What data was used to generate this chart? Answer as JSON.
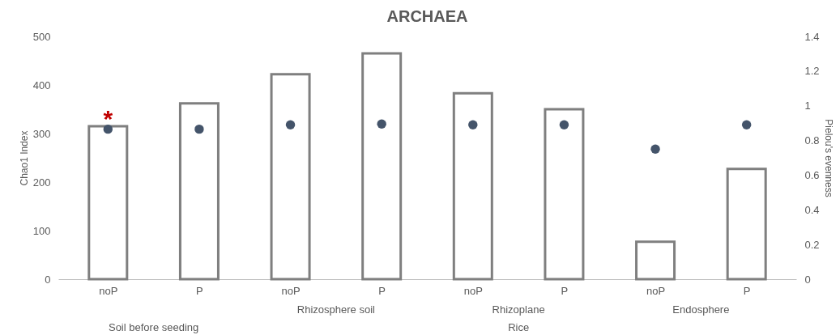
{
  "chart_data": {
    "type": "bar",
    "title": "ARCHAEA",
    "ylabel": "Chao1 Index",
    "y2label": "Pielou's evenness",
    "categories": [
      "noP",
      "P",
      "noP",
      "P",
      "noP",
      "P",
      "noP",
      "P"
    ],
    "series": [
      {
        "color": "#7f7f7f",
        "values": [
          315,
          362,
          422,
          465,
          383,
          350,
          77,
          227
        ]
      },
      {
        "type": "scatter",
        "axis": "y2",
        "color": "#44546a",
        "values": [
          0.865,
          0.865,
          0.89,
          0.895,
          0.89,
          0.89,
          0.75,
          0.89
        ]
      }
    ],
    "ylim": [
      0,
      500
    ],
    "yticks": [
      0,
      100,
      200,
      300,
      400,
      500
    ],
    "y2lim": [
      0,
      1.4
    ],
    "y2ticks": [
      0,
      0.2,
      0.4,
      0.6,
      0.8,
      1,
      1.2,
      1.4
    ],
    "annotations": [
      "Rhizosphere soil",
      "Rhizoplane",
      "Endosphere",
      "Soil before seeding",
      "Rice",
      "*"
    ],
    "marker": "circle",
    "grid": false
  }
}
